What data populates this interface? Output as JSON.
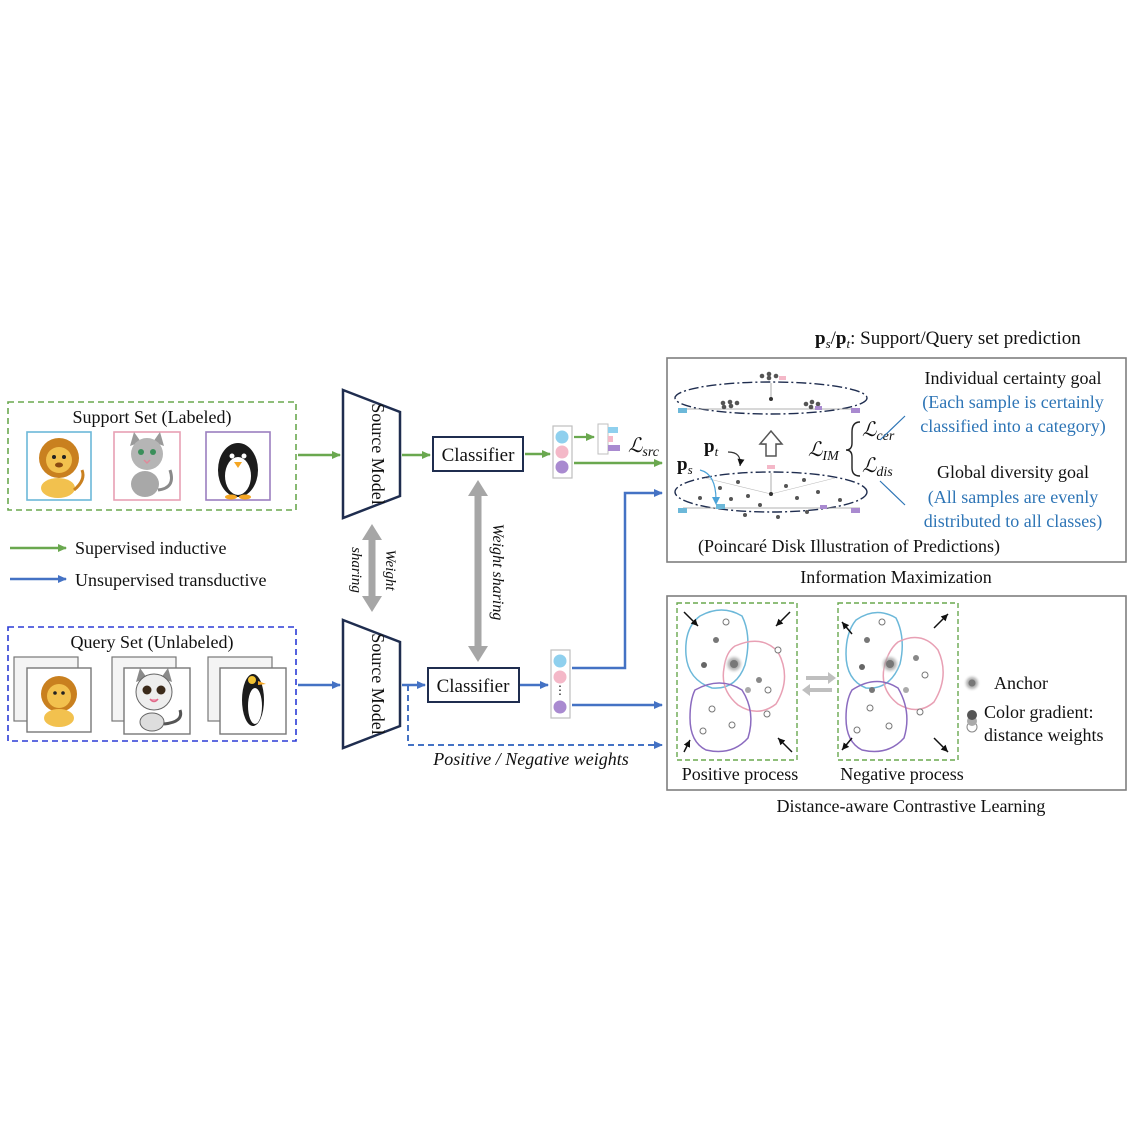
{
  "header": {
    "ps_pt_label": "p_s/p_t: Support/Query set prediction"
  },
  "support_set": {
    "title": "Support Set (Labeled)",
    "images": [
      "lion",
      "cat",
      "penguin"
    ],
    "frame_colors": [
      "#6cb8d9",
      "#e8a0b4",
      "#9b7fc0"
    ]
  },
  "query_set": {
    "title": "Query Set (Unlabeled)",
    "images": [
      "lion",
      "cat",
      "penguin"
    ]
  },
  "legend": {
    "supervised": "Supervised inductive",
    "unsupervised": "Unsupervised transductive",
    "supervised_color": "#6aa84f",
    "unsupervised_color": "#4472c4"
  },
  "model": {
    "source_model_top": "Source Model",
    "source_model_bottom": "Source Model",
    "weight_sharing_left": "Weight sharing",
    "weight_sharing_mid": "Weight sharing",
    "classifier_top": "Classifier",
    "classifier_bottom": "Classifier",
    "pos_neg_weights": "Positive / Negative weights"
  },
  "losses": {
    "src": "ℒ_src",
    "im": "ℒ_IM",
    "cer": "ℒ_cer",
    "dis": "ℒ_dis"
  },
  "info_max": {
    "ps": "p_s",
    "pt": "p_t",
    "poincare_caption": "(Poincaré Disk Illustration of Predictions)",
    "section_title": "Information Maximization",
    "certainty_goal": "Individual certainty goal",
    "certainty_desc_1": "(Each sample is certainly",
    "certainty_desc_2": "classified into a category)",
    "diversity_goal": "Global diversity goal",
    "diversity_desc_1": "(All samples are evenly",
    "diversity_desc_2": "distributed to all classes)"
  },
  "contrastive": {
    "positive_process": "Positive process",
    "negative_process": "Negative process",
    "anchor": "Anchor",
    "color_gradient_1": "Color gradient:",
    "color_gradient_2": "distance weights",
    "section_title": "Distance-aware Contrastive Learning"
  },
  "colors": {
    "green": "#6aa84f",
    "blue": "#4472c4",
    "navy": "#1f2d4f",
    "cls_blue": "#8fd0ee",
    "cls_pink": "#f4b8c8",
    "cls_purple": "#a98ad0"
  }
}
